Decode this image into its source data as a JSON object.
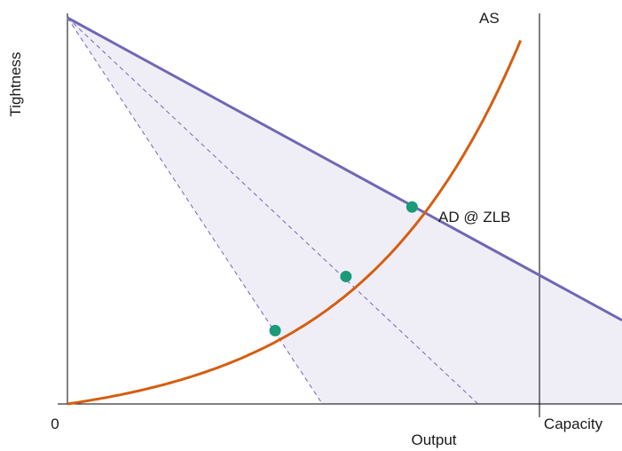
{
  "chart_data": {
    "type": "line",
    "xlabel": "Output",
    "ylabel": "Tightness",
    "xlim": [
      0,
      1.18
    ],
    "ylim": [
      0,
      1.0
    ],
    "x_ticks": [
      {
        "value": 0,
        "label": "0"
      },
      {
        "value": 1.0,
        "label": "Capacity"
      }
    ],
    "capacity_x": 1.0,
    "pivot": {
      "x": 0,
      "y": 1.0
    },
    "series": [
      {
        "name": "AS",
        "kind": "curve",
        "color": "#d55e12"
      },
      {
        "name": "AD @ ZLB",
        "kind": "line",
        "x_intercept": 1.5,
        "color": "#6f68b4"
      },
      {
        "kind": "dashed-line",
        "x_intercept": 0.87,
        "color": "#6f68b4"
      },
      {
        "kind": "dashed-line",
        "x_intercept": 0.54,
        "color": "#6f68b4"
      }
    ],
    "equilibria": [
      {
        "x": 0.44,
        "y": 0.19
      },
      {
        "x": 0.59,
        "y": 0.33
      },
      {
        "x": 0.73,
        "y": 0.51
      }
    ],
    "shaded_region_color": "#efeef6",
    "point_color": "#1a9a78"
  }
}
